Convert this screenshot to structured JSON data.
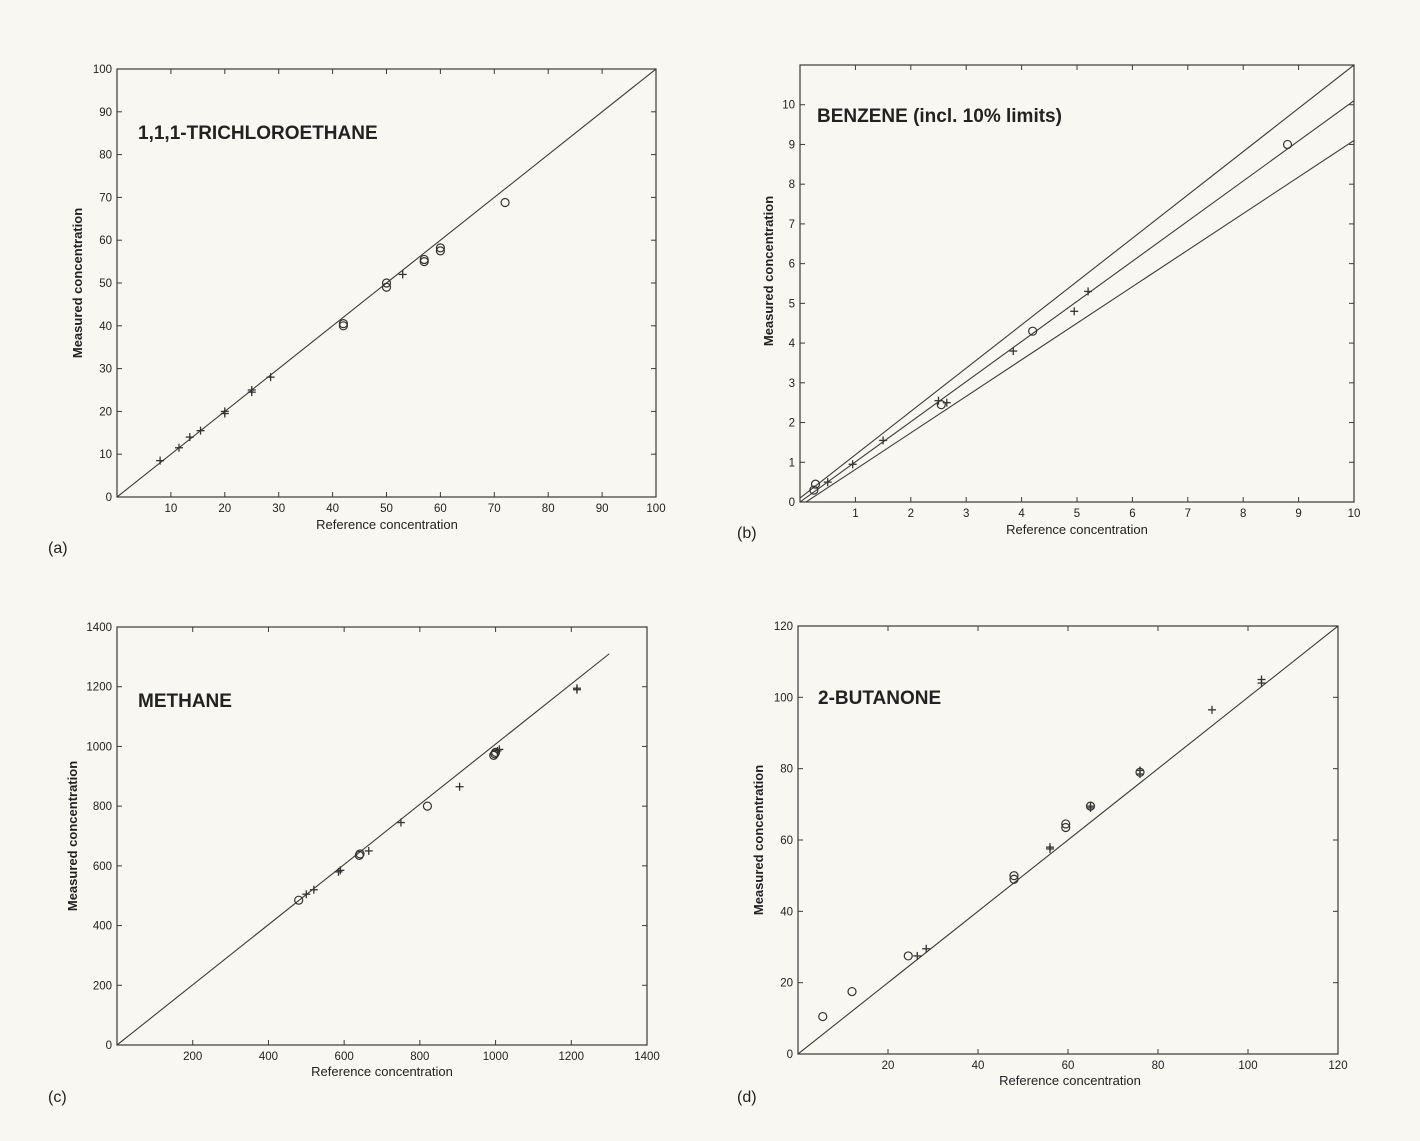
{
  "chart_data": [
    {
      "panel": "(a)",
      "type": "scatter",
      "title": "1,1,1-TRICHLOROETHANE",
      "xlabel": "Reference concentration",
      "ylabel": "Measured concentration",
      "xlim": [
        0,
        100
      ],
      "ylim": [
        0,
        100
      ],
      "xticks": [
        10,
        20,
        30,
        40,
        50,
        60,
        70,
        80,
        90,
        100
      ],
      "yticks": [
        0,
        10,
        20,
        30,
        40,
        50,
        60,
        70,
        80,
        90,
        100
      ],
      "grid": false,
      "lines": [
        {
          "points": [
            [
              0,
              0
            ],
            [
              100,
              100
            ]
          ]
        }
      ],
      "series": [
        {
          "marker": "plus",
          "points": [
            [
              8,
              8.5
            ],
            [
              11.5,
              11.5
            ],
            [
              13.5,
              14
            ],
            [
              15.5,
              15.5
            ],
            [
              20,
              19.5
            ],
            [
              20,
              20
            ],
            [
              25,
              24.5
            ],
            [
              25,
              25
            ],
            [
              28.5,
              28
            ],
            [
              53,
              52
            ]
          ]
        },
        {
          "marker": "circle",
          "points": [
            [
              42,
              40
            ],
            [
              42,
              40.5
            ],
            [
              50,
              49
            ],
            [
              50,
              50
            ],
            [
              57,
              55
            ],
            [
              57,
              55.5
            ],
            [
              60,
              57.5
            ],
            [
              60,
              58.2
            ],
            [
              72,
              68.8
            ]
          ]
        }
      ]
    },
    {
      "panel": "(b)",
      "type": "scatter",
      "title": "BENZENE (incl. 10% limits)",
      "xlabel": "Reference concentration",
      "ylabel": "Measured concentration",
      "xlim": [
        0,
        10
      ],
      "ylim": [
        0,
        11
      ],
      "xticks": [
        1,
        2,
        3,
        4,
        5,
        6,
        7,
        8,
        9,
        10
      ],
      "yticks": [
        0,
        1,
        2,
        3,
        4,
        5,
        6,
        7,
        8,
        9,
        10
      ],
      "grid": false,
      "lines": [
        {
          "points": [
            [
              0,
              0.1
            ],
            [
              10,
              11
            ]
          ]
        },
        {
          "points": [
            [
              0,
              0
            ],
            [
              10,
              10.1
            ]
          ]
        },
        {
          "points": [
            [
              0,
              -0.1
            ],
            [
              10,
              9.1
            ]
          ]
        }
      ],
      "series": [
        {
          "marker": "plus",
          "points": [
            [
              0.5,
              0.5
            ],
            [
              0.95,
              0.95
            ],
            [
              1.5,
              1.55
            ],
            [
              2.5,
              2.55
            ],
            [
              2.65,
              2.5
            ],
            [
              3.85,
              3.8
            ],
            [
              4.95,
              4.8
            ],
            [
              5.2,
              5.3
            ]
          ]
        },
        {
          "marker": "circle",
          "points": [
            [
              0.25,
              0.3
            ],
            [
              0.28,
              0.45
            ],
            [
              2.55,
              2.45
            ],
            [
              4.2,
              4.3
            ],
            [
              8.8,
              9.0
            ]
          ]
        }
      ]
    },
    {
      "panel": "(c)",
      "type": "scatter",
      "title": "METHANE",
      "xlabel": "Reference concentration",
      "ylabel": "Measured concentration",
      "xlim": [
        0,
        1400
      ],
      "ylim": [
        0,
        1400
      ],
      "xticks": [
        200,
        400,
        600,
        800,
        1000,
        1200,
        1400
      ],
      "yticks": [
        0,
        200,
        400,
        600,
        800,
        1000,
        1200,
        1400
      ],
      "grid": false,
      "lines": [
        {
          "points": [
            [
              0,
              0
            ],
            [
              1300,
              1310
            ]
          ]
        }
      ],
      "series": [
        {
          "marker": "plus",
          "points": [
            [
              500,
              505
            ],
            [
              520,
              520
            ],
            [
              585,
              580
            ],
            [
              590,
              585
            ],
            [
              665,
              650
            ],
            [
              750,
              745
            ],
            [
              905,
              865
            ],
            [
              1005,
              985
            ],
            [
              1010,
              990
            ],
            [
              1215,
              1190
            ],
            [
              1215,
              1195
            ]
          ]
        },
        {
          "marker": "circle",
          "points": [
            [
              480,
              485
            ],
            [
              640,
              635
            ],
            [
              642,
              640
            ],
            [
              820,
              800
            ],
            [
              995,
              970
            ],
            [
              998,
              975
            ],
            [
              1000,
              980
            ]
          ]
        }
      ]
    },
    {
      "panel": "(d)",
      "type": "scatter",
      "title": "2-BUTANONE",
      "xlabel": "Reference concentration",
      "ylabel": "Measured concentration",
      "xlim": [
        0,
        120
      ],
      "ylim": [
        0,
        120
      ],
      "xticks": [
        20,
        40,
        60,
        80,
        100,
        120
      ],
      "yticks": [
        0,
        20,
        40,
        60,
        80,
        100,
        120
      ],
      "grid": false,
      "lines": [
        {
          "points": [
            [
              0,
              0
            ],
            [
              120,
              120
            ]
          ]
        }
      ],
      "series": [
        {
          "marker": "plus",
          "points": [
            [
              26.5,
              27.5
            ],
            [
              28.5,
              29.5
            ],
            [
              56,
              57.5
            ],
            [
              56,
              58
            ],
            [
              65,
              69
            ],
            [
              65,
              69.5
            ],
            [
              76,
              78.5
            ],
            [
              76,
              79.5
            ],
            [
              92,
              96.5
            ],
            [
              103,
              104
            ],
            [
              103,
              105
            ]
          ]
        },
        {
          "marker": "circle",
          "points": [
            [
              5.5,
              10.5
            ],
            [
              12,
              17.5
            ],
            [
              24.5,
              27.5
            ],
            [
              48,
              49
            ],
            [
              48,
              50
            ],
            [
              59.5,
              63.5
            ],
            [
              59.5,
              64.5
            ],
            [
              65,
              69.5
            ],
            [
              76,
              79
            ]
          ]
        }
      ]
    }
  ]
}
